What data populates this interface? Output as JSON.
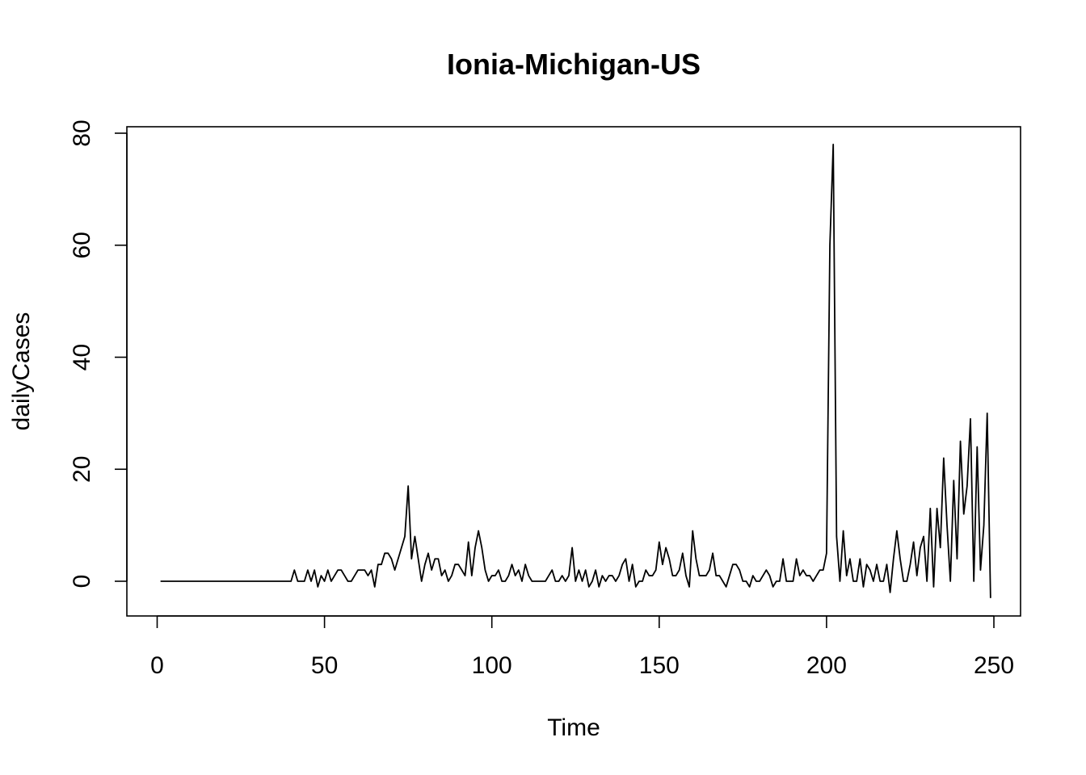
{
  "chart_data": {
    "type": "line",
    "title": "Ionia-Michigan-US",
    "xlabel": "Time",
    "ylabel": "dailyCases",
    "xlim": [
      1,
      248
    ],
    "ylim": [
      -3,
      78
    ],
    "x_ticks": [
      0,
      50,
      100,
      150,
      200,
      250
    ],
    "x_tick_labels": [
      "0",
      "50",
      "100",
      "150",
      "200",
      "250"
    ],
    "y_ticks": [
      0,
      20,
      40,
      60,
      80
    ],
    "y_tick_labels": [
      "0",
      "20",
      "40",
      "60",
      "80"
    ],
    "grid": false,
    "legend": "none",
    "line_color": "#000000",
    "series": [
      {
        "values": [
          0,
          0,
          0,
          0,
          0,
          0,
          0,
          0,
          0,
          0,
          0,
          0,
          0,
          0,
          0,
          0,
          0,
          0,
          0,
          0,
          0,
          0,
          0,
          0,
          0,
          0,
          0,
          0,
          0,
          0,
          0,
          0,
          0,
          0,
          0,
          0,
          0,
          0,
          0,
          0,
          2,
          0,
          0,
          0,
          2,
          0,
          2,
          -1,
          1,
          0,
          2,
          0,
          1,
          2,
          2,
          1,
          0,
          0,
          1,
          2,
          2,
          2,
          1,
          2,
          -1,
          3,
          3,
          5,
          5,
          4,
          2,
          4,
          6,
          8,
          17,
          4,
          8,
          4,
          0,
          3,
          5,
          2,
          4,
          4,
          1,
          2,
          0,
          1,
          3,
          3,
          2,
          1,
          7,
          1,
          6,
          9,
          6,
          2,
          0,
          1,
          1,
          2,
          0,
          0,
          1,
          3,
          1,
          2,
          0,
          3,
          1,
          0,
          0,
          0,
          0,
          0,
          1,
          2,
          0,
          0,
          1,
          0,
          1,
          6,
          0,
          2,
          0,
          2,
          -1,
          0,
          2,
          -1,
          1,
          0,
          1,
          1,
          0,
          1,
          3,
          4,
          0,
          3,
          -1,
          0,
          0,
          2,
          1,
          1,
          2,
          7,
          3,
          6,
          4,
          1,
          1,
          2,
          5,
          1,
          -1,
          9,
          4,
          1,
          1,
          1,
          2,
          5,
          1,
          1,
          0,
          -1,
          1,
          3,
          3,
          2,
          0,
          0,
          -1,
          1,
          0,
          0,
          1,
          2,
          1,
          -1,
          0,
          0,
          4,
          0,
          0,
          0,
          4,
          1,
          2,
          1,
          1,
          0,
          1,
          2,
          2,
          5,
          60,
          78,
          8,
          0,
          9,
          1,
          4,
          0,
          0,
          4,
          -1,
          3,
          2,
          0,
          3,
          0,
          0,
          3,
          -2,
          4,
          9,
          4,
          0,
          0,
          3,
          7,
          1,
          6,
          8,
          0,
          13,
          -1,
          13,
          6,
          22,
          10,
          0,
          18,
          4,
          25,
          12,
          17,
          29,
          0,
          24,
          2,
          10,
          30,
          -3
        ]
      }
    ]
  }
}
